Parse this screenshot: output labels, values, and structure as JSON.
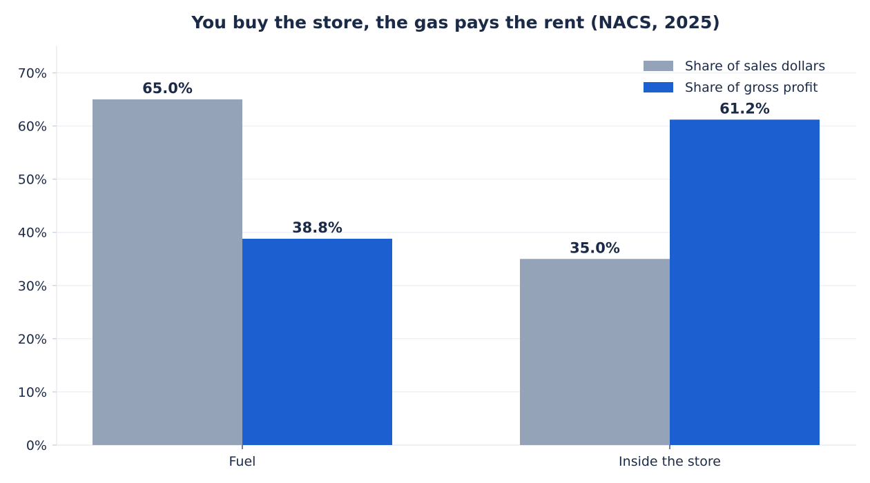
{
  "chart_data": {
    "type": "bar",
    "title": "You buy the store, the gas pays the rent (NACS, 2025)",
    "xlabel": "",
    "ylabel": "",
    "categories": [
      "Fuel",
      "Inside the store"
    ],
    "series": [
      {
        "name": "Share of sales dollars",
        "values": [
          65.0,
          35.0
        ],
        "labels": [
          "65.0%",
          "35.0%"
        ],
        "color": "#94a3b8"
      },
      {
        "name": "Share of gross profit",
        "values": [
          38.8,
          61.2
        ],
        "labels": [
          "38.8%",
          "61.2%"
        ],
        "color": "#1b5fd0"
      }
    ],
    "ylim": [
      0,
      75
    ],
    "yticks": [
      0,
      10,
      20,
      30,
      40,
      50,
      60,
      70
    ],
    "ytick_labels": [
      "0%",
      "10%",
      "20%",
      "30%",
      "40%",
      "50%",
      "60%",
      "70%"
    ],
    "grid": true,
    "legend_position": "top-right"
  }
}
